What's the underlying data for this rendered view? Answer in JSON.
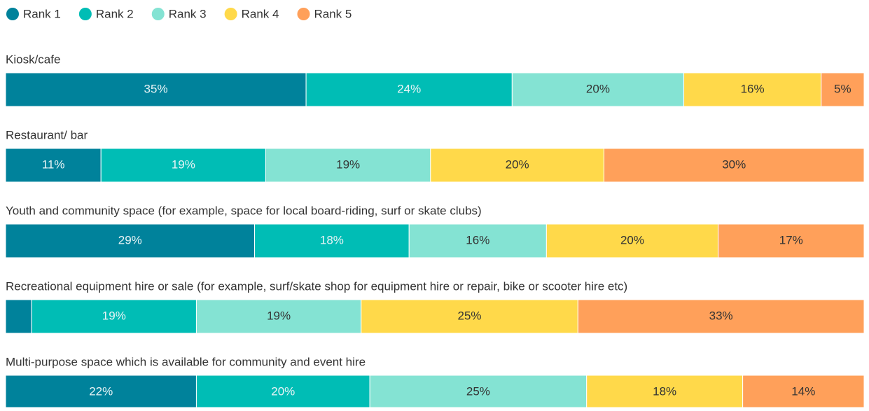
{
  "chart_data": {
    "type": "stacked-bar-horizontal-percent",
    "categories": [
      "Kiosk/cafe",
      "Restaurant/ bar",
      "Youth and community space (for example, space for local board-riding, surf or skate clubs)",
      "Recreational equipment hire or sale (for example, surf/skate shop for equipment hire or repair, bike or scooter hire etc)",
      "Multi-purpose space which is available for community and event hire"
    ],
    "series": [
      {
        "name": "Rank 1",
        "color": "#00829b",
        "values": [
          35,
          11,
          29,
          3,
          22
        ],
        "value_labels": [
          "35%",
          "11%",
          "29%",
          null,
          "22%"
        ]
      },
      {
        "name": "Rank 2",
        "color": "#00bdb5",
        "values": [
          24,
          19,
          18,
          19,
          20
        ],
        "value_labels": [
          "24%",
          "19%",
          "18%",
          "19%",
          "20%"
        ]
      },
      {
        "name": "Rank 3",
        "color": "#84e3d3",
        "values": [
          20,
          19,
          16,
          19,
          25
        ],
        "value_labels": [
          "20%",
          "19%",
          "16%",
          "19%",
          "25%"
        ]
      },
      {
        "name": "Rank 4",
        "color": "#ffd94a",
        "values": [
          16,
          20,
          20,
          25,
          18
        ],
        "value_labels": [
          "16%",
          "20%",
          "20%",
          "25%",
          "18%"
        ]
      },
      {
        "name": "Rank 5",
        "color": "#ffa05a",
        "values": [
          5,
          30,
          17,
          33,
          14
        ],
        "value_labels": [
          "5%",
          "30%",
          "17%",
          "33%",
          "14%"
        ]
      }
    ]
  }
}
